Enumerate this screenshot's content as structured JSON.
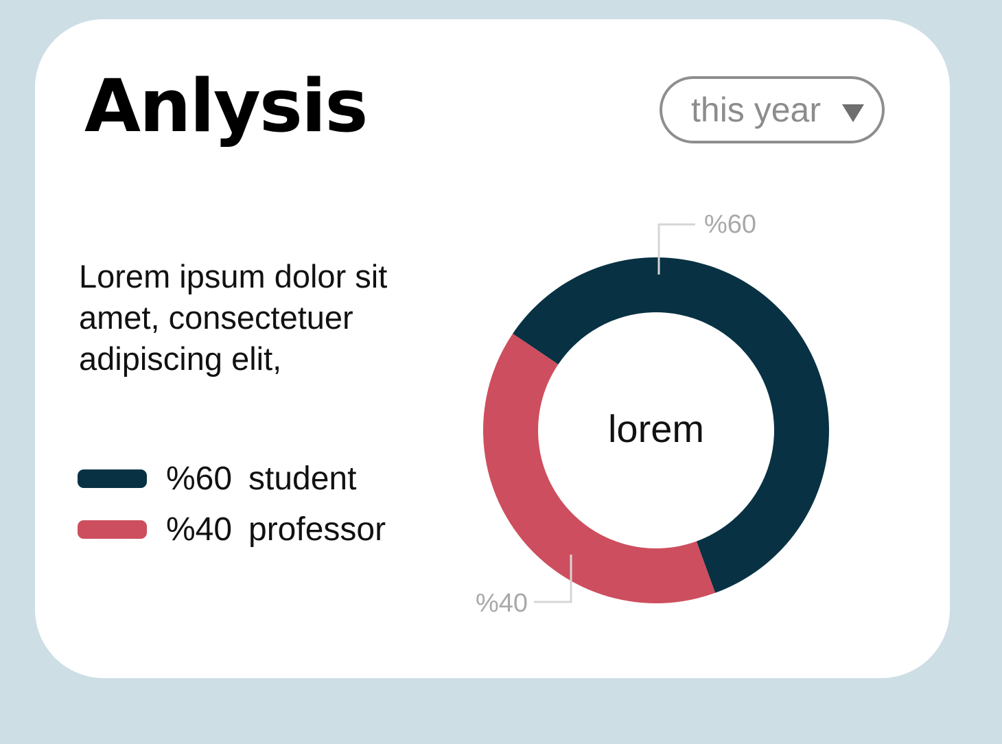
{
  "card": {
    "title": "Anlysis",
    "period_selector": {
      "value": "this year",
      "icon": "caret-down-icon"
    },
    "description": "Lorem ipsum dolor sit amet, consectetuer adipiscing elit,"
  },
  "colors": {
    "background": "#cddee5",
    "card": "#ffffff",
    "student": "#083243",
    "professor": "#cd4e5e",
    "callout": "#d6d6d6",
    "callout_text": "#a8a8a8"
  },
  "chart_data": {
    "type": "pie",
    "variant": "donut",
    "center_label": "lorem",
    "series": [
      {
        "name": "student",
        "value": 60,
        "label": "%60",
        "color": "#083243"
      },
      {
        "name": "professor",
        "value": 40,
        "label": "%40",
        "color": "#cd4e5e"
      }
    ],
    "legend": [
      {
        "percent": "%60",
        "name": "student"
      },
      {
        "percent": "%40",
        "name": "professor"
      }
    ],
    "legend_placement": "left"
  }
}
